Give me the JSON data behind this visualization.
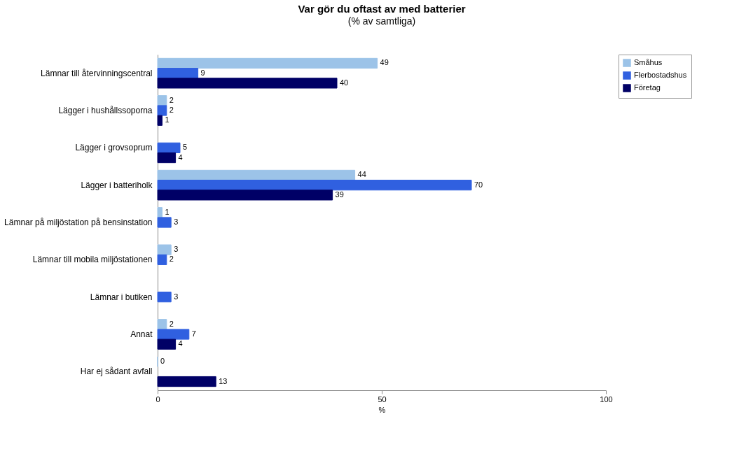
{
  "chart_data": {
    "type": "bar",
    "orientation": "horizontal",
    "title": "Var gör du oftast av med batterier",
    "subtitle": "(% av samtliga)",
    "xlabel": "%",
    "categories": [
      "Lämnar till återvinningscentral",
      "Lägger i hushållssoporna",
      "Lägger i grovsoprum",
      "Lägger i batteriholk",
      "Lämnar på miljöstation på bensinstation",
      "Lämnar till mobila miljöstationen",
      "Lämnar i butiken",
      "Annat",
      "Har ej sådant avfall"
    ],
    "series": [
      {
        "name": "Småhus",
        "color": "#9cc3e8",
        "values": [
          49,
          2,
          null,
          44,
          1,
          3,
          null,
          2,
          0
        ]
      },
      {
        "name": "Flerbostadshus",
        "color": "#3060e0",
        "values": [
          9,
          2,
          5,
          70,
          3,
          2,
          3,
          7,
          null
        ]
      },
      {
        "name": "Företag",
        "color": "#000066",
        "values": [
          40,
          1,
          4,
          39,
          null,
          null,
          null,
          4,
          13
        ]
      }
    ],
    "xlim": [
      0,
      100
    ],
    "xticks": [
      0,
      50,
      100
    ],
    "grid": false,
    "legend": "right",
    "data_labels": true
  }
}
